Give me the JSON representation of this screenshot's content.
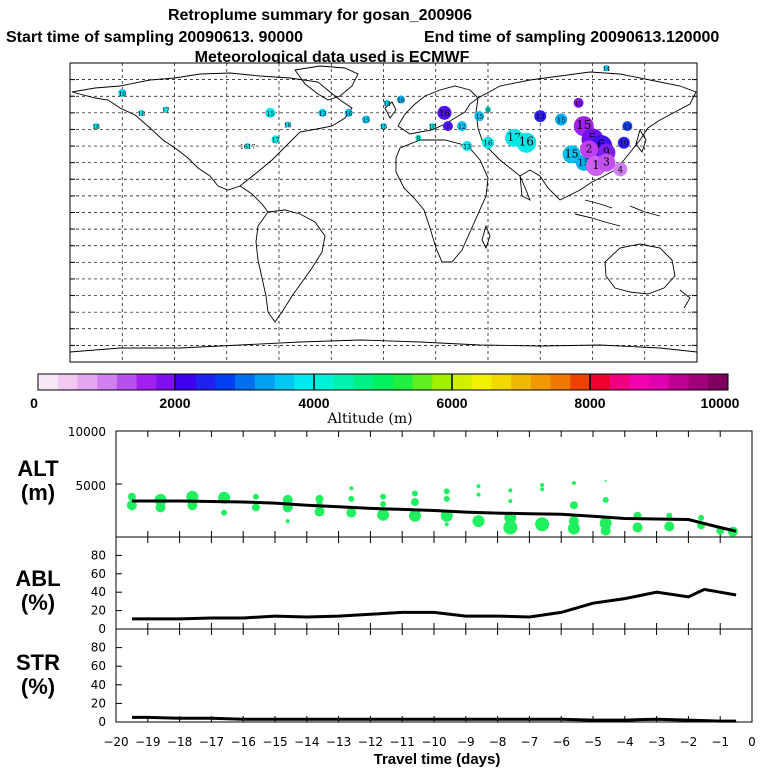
{
  "header": {
    "title": "Retroplume summary for gosan_200906",
    "start": "Start time of sampling 20090613. 90000",
    "end": "End time of sampling 20090613.120000",
    "met": "Meteorological data used is ECMWF"
  },
  "colorbar": {
    "label": "Altitude (m)",
    "ticks": [
      "0",
      "2000",
      "4000",
      "6000",
      "8000",
      "10000"
    ],
    "colors": [
      "#f8e8f8",
      "#f0c8f0",
      "#e4a8f0",
      "#d080f0",
      "#b850f0",
      "#a020f0",
      "#8010f0",
      "#4000f0",
      "#2020f0",
      "#0040f0",
      "#0070f0",
      "#00a0f0",
      "#00c8f0",
      "#00e8f0",
      "#00f0d8",
      "#00f0b0",
      "#00f088",
      "#00f060",
      "#20f040",
      "#60f020",
      "#a0f000",
      "#d0f000",
      "#f0f000",
      "#f0d800",
      "#f0b800",
      "#f09800",
      "#f07800",
      "#f04000",
      "#f00030",
      "#f00080",
      "#f000b0",
      "#e000b0",
      "#c00090",
      "#a00078",
      "#800060"
    ]
  },
  "map": {
    "markers": [
      {
        "lon": -150,
        "lat": 72,
        "label": "16",
        "color": "#00d8f0",
        "size": 4
      },
      {
        "lon": -139,
        "lat": 60,
        "label": "18",
        "color": "#00e8e8",
        "size": 3
      },
      {
        "lon": -125,
        "lat": 62,
        "label": "17",
        "color": "#00e8e8",
        "size": 3
      },
      {
        "lon": -165,
        "lat": 52,
        "label": "18",
        "color": "#00e8e8",
        "size": 3
      },
      {
        "lon": -65,
        "lat": 60,
        "label": "15",
        "color": "#00e8e8",
        "size": 5
      },
      {
        "lon": -62,
        "lat": 44,
        "label": "17",
        "color": "#00e8e8",
        "size": 4
      },
      {
        "lon": -55,
        "lat": 53,
        "label": "16",
        "color": "#00d8f0",
        "size": 3
      },
      {
        "lon": -78,
        "lat": 40,
        "label": "1617",
        "color": "#00e8e8",
        "size": 3
      },
      {
        "lon": -35,
        "lat": 60,
        "label": "13",
        "color": "#00c8f0",
        "size": 4
      },
      {
        "lon": -20,
        "lat": 60,
        "label": "16",
        "color": "#00c0f0",
        "size": 4
      },
      {
        "lon": -10,
        "lat": 56,
        "label": "15",
        "color": "#00c8f0",
        "size": 4
      },
      {
        "lon": 2,
        "lat": 66,
        "label": "14",
        "color": "#00c8f0",
        "size": 3
      },
      {
        "lon": 10,
        "lat": 68,
        "label": "16",
        "color": "#00b0f0",
        "size": 4
      },
      {
        "lon": 0,
        "lat": 52,
        "label": "15",
        "color": "#00c8f0",
        "size": 3
      },
      {
        "lon": 20,
        "lat": 45,
        "label": "8",
        "color": "#00e8d0",
        "size": 3
      },
      {
        "lon": 28,
        "lat": 52,
        "label": "10",
        "color": "#00e8e8",
        "size": 3
      },
      {
        "lon": 35,
        "lat": 60,
        "label": "16",
        "color": "#5010f0",
        "size": 7
      },
      {
        "lon": 37,
        "lat": 52,
        "label": "1",
        "color": "#5010f0",
        "size": 5
      },
      {
        "lon": 45,
        "lat": 52,
        "label": "12",
        "color": "#00c0f0",
        "size": 5
      },
      {
        "lon": 55,
        "lat": 58,
        "label": "15",
        "color": "#00c0f0",
        "size": 5
      },
      {
        "lon": 60,
        "lat": 62,
        "label": "8",
        "color": "#00e8d0",
        "size": 3
      },
      {
        "lon": 48,
        "lat": 40,
        "label": "13",
        "color": "#00e8e8",
        "size": 5
      },
      {
        "lon": 60,
        "lat": 42,
        "label": "16",
        "color": "#00e8e8",
        "size": 6
      },
      {
        "lon": 75,
        "lat": 45,
        "label": "17",
        "color": "#00e8e8",
        "size": 9
      },
      {
        "lon": 82,
        "lat": 42,
        "label": "16",
        "color": "#00e8e8",
        "size": 10
      },
      {
        "lon": 90,
        "lat": 58,
        "label": "13",
        "color": "#3020f0",
        "size": 6
      },
      {
        "lon": 102,
        "lat": 56,
        "label": "15",
        "color": "#00a8f0",
        "size": 6
      },
      {
        "lon": 115,
        "lat": 52,
        "label": "15",
        "color": "#a020f0",
        "size": 10
      },
      {
        "lon": 108,
        "lat": 35,
        "label": "15",
        "color": "#00c0f0",
        "size": 9
      },
      {
        "lon": 115,
        "lat": 30,
        "label": "15",
        "color": "#00b0f0",
        "size": 8
      },
      {
        "lon": 120,
        "lat": 44,
        "label": "5",
        "color": "#7010f0",
        "size": 11
      },
      {
        "lon": 125,
        "lat": 40,
        "label": "6",
        "color": "#4010f0",
        "size": 11
      },
      {
        "lon": 128,
        "lat": 36,
        "label": "9",
        "color": "#8020f0",
        "size": 9
      },
      {
        "lon": 118,
        "lat": 38,
        "label": "2",
        "color": "#c040f0",
        "size": 9
      },
      {
        "lon": 122,
        "lat": 28,
        "label": "1",
        "color": "#d060f0",
        "size": 10
      },
      {
        "lon": 128,
        "lat": 30,
        "label": "3",
        "color": "#c050f0",
        "size": 9
      },
      {
        "lon": 136,
        "lat": 26,
        "label": "4",
        "color": "#d080f0",
        "size": 7
      },
      {
        "lon": 138,
        "lat": 42,
        "label": "10",
        "color": "#3020f0",
        "size": 6
      },
      {
        "lon": 140,
        "lat": 52,
        "label": "13",
        "color": "#1040f0",
        "size": 5
      },
      {
        "lon": 128,
        "lat": 87,
        "label": "14",
        "color": "#00c8f0",
        "size": 3
      },
      {
        "lon": 112,
        "lat": 66,
        "label": "15",
        "color": "#8010f0",
        "size": 5
      }
    ]
  },
  "chart_data": [
    {
      "type": "scatter",
      "name": "ALT",
      "label": "ALT",
      "unit": "(m)",
      "ylim": [
        0,
        10000
      ],
      "yticks": [
        "5000",
        "10000"
      ],
      "line": {
        "x": [
          -19.5,
          -19,
          -18,
          -17,
          -16,
          -15,
          -14,
          -13,
          -12,
          -11,
          -10,
          -9,
          -8,
          -7,
          -6,
          -5,
          -4,
          -3,
          -2,
          -1,
          -0.5
        ],
        "y": [
          3400,
          3400,
          3400,
          3350,
          3300,
          3200,
          3000,
          2850,
          2700,
          2600,
          2500,
          2350,
          2250,
          2200,
          2150,
          1950,
          1750,
          1700,
          1650,
          900,
          550
        ]
      },
      "points": [
        [
          -19.5,
          3800,
          4
        ],
        [
          -19.5,
          3000,
          5
        ],
        [
          -18.6,
          3500,
          6
        ],
        [
          -18.6,
          2800,
          5
        ],
        [
          -17.6,
          3800,
          6
        ],
        [
          -17.6,
          3000,
          5
        ],
        [
          -16.6,
          3700,
          6
        ],
        [
          -16.6,
          2300,
          3
        ],
        [
          -15.6,
          3800,
          3
        ],
        [
          -15.6,
          2800,
          4
        ],
        [
          -14.6,
          3500,
          5
        ],
        [
          -14.6,
          2800,
          5
        ],
        [
          -14.6,
          1500,
          2
        ],
        [
          -13.6,
          3600,
          4
        ],
        [
          -13.6,
          3200,
          3
        ],
        [
          -13.6,
          2400,
          5
        ],
        [
          -12.6,
          4600,
          2
        ],
        [
          -12.6,
          3600,
          3
        ],
        [
          -12.6,
          2300,
          5
        ],
        [
          -11.6,
          3800,
          3
        ],
        [
          -11.6,
          3100,
          3
        ],
        [
          -11.6,
          2100,
          6
        ],
        [
          -10.6,
          4100,
          3
        ],
        [
          -10.6,
          3300,
          4
        ],
        [
          -10.6,
          2000,
          6
        ],
        [
          -9.6,
          4300,
          3
        ],
        [
          -9.6,
          3600,
          3
        ],
        [
          -9.6,
          2000,
          6
        ],
        [
          -9.6,
          1200,
          2
        ],
        [
          -8.6,
          4800,
          2
        ],
        [
          -8.6,
          4000,
          2
        ],
        [
          -8.6,
          1500,
          6
        ],
        [
          -7.6,
          4400,
          2
        ],
        [
          -7.6,
          3400,
          2
        ],
        [
          -7.6,
          1800,
          6
        ],
        [
          -7.6,
          900,
          7
        ],
        [
          -6.6,
          4900,
          2
        ],
        [
          -6.6,
          4500,
          2
        ],
        [
          -6.6,
          1200,
          7
        ],
        [
          -5.6,
          5100,
          2
        ],
        [
          -5.6,
          3000,
          4
        ],
        [
          -5.6,
          1500,
          5
        ],
        [
          -5.6,
          800,
          6
        ],
        [
          -4.6,
          5300,
          1
        ],
        [
          -4.6,
          3500,
          3
        ],
        [
          -4.6,
          1300,
          6
        ],
        [
          -4.6,
          600,
          5
        ],
        [
          -3.6,
          2000,
          4
        ],
        [
          -3.6,
          900,
          5
        ],
        [
          -2.6,
          2000,
          3
        ],
        [
          -2.6,
          1000,
          5
        ],
        [
          -1.6,
          1800,
          3
        ],
        [
          -1.6,
          1100,
          4
        ],
        [
          -1,
          600,
          4
        ],
        [
          -0.6,
          500,
          5
        ]
      ]
    },
    {
      "type": "line",
      "name": "ABL",
      "label": "ABL",
      "unit": "(%)",
      "ylim": [
        0,
        100
      ],
      "yticks": [
        "0",
        "20",
        "40",
        "60",
        "80"
      ],
      "x": [
        -19.5,
        -19,
        -18,
        -17,
        -16,
        -15,
        -14,
        -13,
        -12,
        -11,
        -10,
        -9,
        -8,
        -7,
        -6,
        -5,
        -4,
        -3,
        -2,
        -1.5,
        -1,
        -0.5
      ],
      "y": [
        11,
        11,
        11,
        12,
        12,
        14,
        13,
        14,
        16,
        18,
        18,
        14,
        14,
        13,
        18,
        28,
        33,
        40,
        35,
        43,
        40,
        37
      ]
    },
    {
      "type": "line",
      "name": "STR",
      "label": "STR",
      "unit": "(%)",
      "ylim": [
        0,
        100
      ],
      "yticks": [
        "0",
        "20",
        "40",
        "60",
        "80"
      ],
      "x": [
        -19.5,
        -19,
        -18,
        -17,
        -16,
        -15,
        -14,
        -13,
        -12,
        -11,
        -10,
        -9,
        -8,
        -7,
        -6,
        -5,
        -4,
        -3,
        -2,
        -1,
        -0.5
      ],
      "y": [
        5,
        5,
        4,
        4,
        3,
        3,
        3,
        3,
        3,
        3,
        3,
        3,
        3,
        3,
        3,
        2,
        2,
        3,
        2,
        1,
        1
      ]
    }
  ],
  "xaxis": {
    "label": "Travel time (days)",
    "ticks": [
      "-20",
      "-19",
      "-18",
      "-17",
      "-16",
      "-15",
      "-14",
      "-13",
      "-12",
      "-11",
      "-10",
      "-9",
      "-8",
      "-7",
      "-6",
      "-5",
      "-4",
      "-3",
      "-2",
      "-1",
      "0"
    ]
  }
}
